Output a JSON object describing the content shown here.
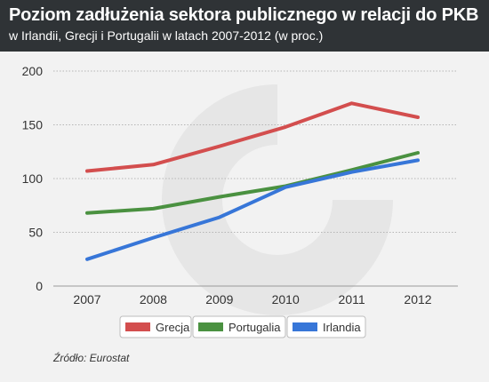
{
  "header": {
    "title": "Poziom zadłużenia sektora publicznego w relacji do PKB",
    "subtitle": "w Irlandii, Grecji i Portugalii w latach 2007-2012 (w proc.)"
  },
  "source": "Źródło: Eurostat",
  "chart_data": {
    "type": "line",
    "title": "Poziom zadłużenia sektora publicznego w relacji do PKB",
    "subtitle": "w Irlandii, Grecji i Portugalii w latach 2007-2012 (w proc.)",
    "x": [
      "2007",
      "2008",
      "2009",
      "2010",
      "2011",
      "2012"
    ],
    "ylim": [
      0,
      200
    ],
    "yticks": [
      0,
      50,
      100,
      150,
      200
    ],
    "grid": "horizontal",
    "legend_position": "bottom",
    "series": [
      {
        "name": "Grecja",
        "color": "#d34e4e",
        "values": [
          107,
          113,
          130,
          148,
          170,
          157
        ]
      },
      {
        "name": "Portugalia",
        "color": "#4a9140",
        "values": [
          68,
          72,
          83,
          93,
          108,
          124
        ]
      },
      {
        "name": "Irlandia",
        "color": "#3776d8",
        "values": [
          25,
          45,
          64,
          92,
          106,
          117
        ]
      }
    ]
  }
}
